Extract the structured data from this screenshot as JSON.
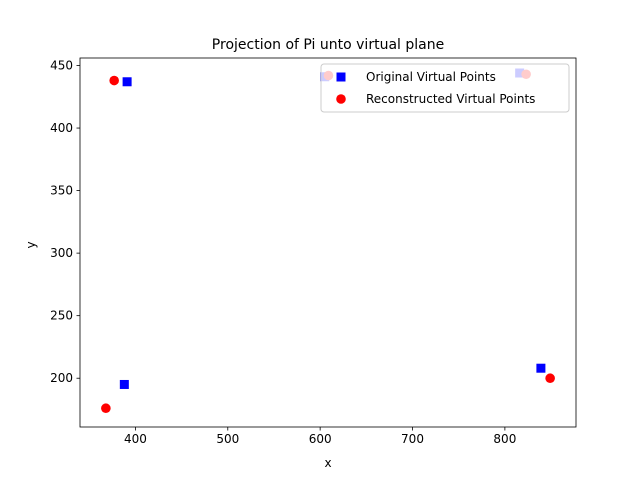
{
  "chart_data": {
    "type": "scatter",
    "title": "Projection of Pi unto virtual plane",
    "xlabel": "x",
    "ylabel": "y",
    "xlim": [
      340,
      877
    ],
    "ylim": [
      161,
      456
    ],
    "xticks": [
      400,
      500,
      600,
      700,
      800
    ],
    "yticks": [
      200,
      250,
      300,
      350,
      400,
      450
    ],
    "grid": false,
    "legend_position": "upper right",
    "series": [
      {
        "name": "Original Virtual Points",
        "marker": "square",
        "color": "#0000ff",
        "points": [
          {
            "x": 391,
            "y": 437
          },
          {
            "x": 388,
            "y": 195
          },
          {
            "x": 839,
            "y": 208
          },
          {
            "x": 605,
            "y": 441
          },
          {
            "x": 816,
            "y": 444
          }
        ]
      },
      {
        "name": "Reconstructed Virtual Points",
        "marker": "circle",
        "color": "#ff0000",
        "points": [
          {
            "x": 377,
            "y": 438
          },
          {
            "x": 368,
            "y": 176
          },
          {
            "x": 849,
            "y": 200
          },
          {
            "x": 609,
            "y": 442
          },
          {
            "x": 823,
            "y": 443
          }
        ]
      }
    ]
  }
}
